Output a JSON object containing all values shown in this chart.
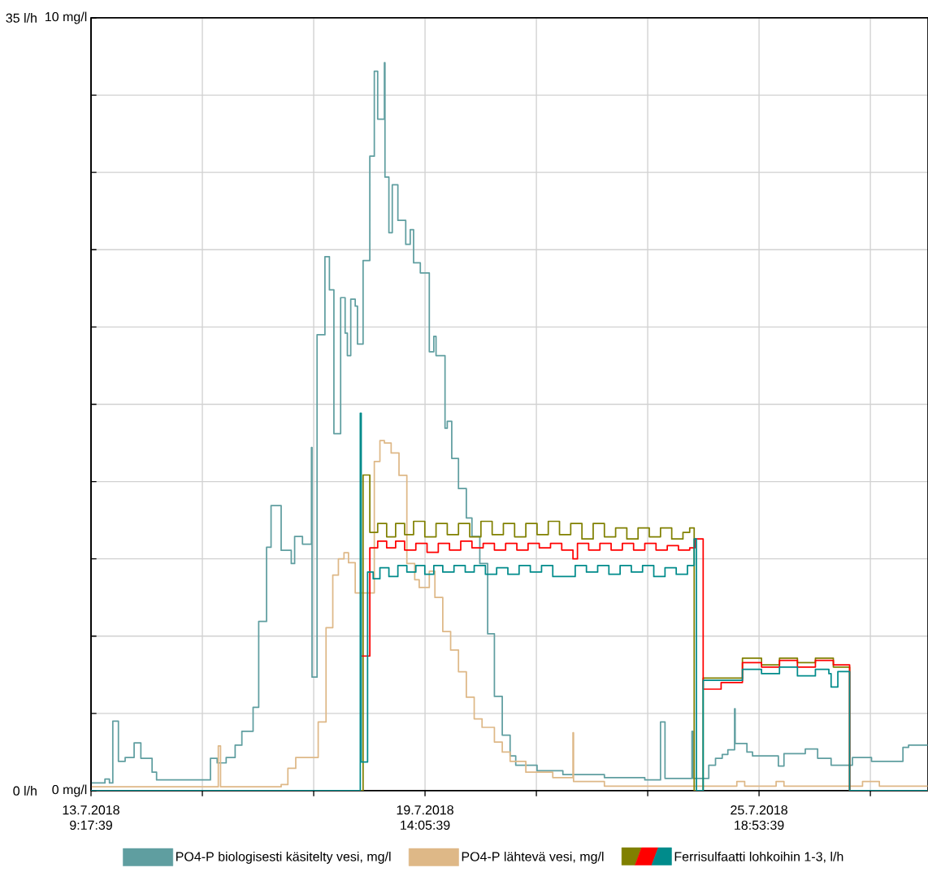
{
  "chart_data": {
    "type": "step",
    "xlim": [
      "2018-07-13T09:17:39",
      "2018-07-28T22:10"
    ],
    "xticks": [
      {
        "value": "2018-07-13T09:17:39",
        "label": "13.7.2018 9:17:39"
      },
      {
        "value": "2018-07-15T10:53:39",
        "label": null
      },
      {
        "value": "2018-07-17T12:29:39",
        "label": null
      },
      {
        "value": "2018-07-19T14:05:39",
        "label": "19.7.2018 14:05:39"
      },
      {
        "value": "2018-07-21T15:41:39",
        "label": null
      },
      {
        "value": "2018-07-23T17:17:39",
        "label": null
      },
      {
        "value": "2018-07-25T18:53:39",
        "label": "25.7.2018 18:53:39"
      },
      {
        "value": "2018-07-27T20:29:39",
        "label": null
      }
    ],
    "ylim": [
      0,
      10
    ],
    "yticks": [
      {
        "value": 0,
        "label": "0 mg/l"
      },
      {
        "value": 1,
        "label": null
      },
      {
        "value": 2,
        "label": null
      },
      {
        "value": 3,
        "label": null
      },
      {
        "value": 4,
        "label": null
      },
      {
        "value": 5,
        "label": null
      },
      {
        "value": 6,
        "label": null
      },
      {
        "value": 7,
        "label": null
      },
      {
        "value": 8,
        "label": null
      },
      {
        "value": 9,
        "label": null
      },
      {
        "value": 10,
        "label": "10 mg/l"
      }
    ],
    "y2lim": [
      0,
      35
    ],
    "y2ticks": [
      {
        "value": 0,
        "label": "0 l/h"
      },
      {
        "value": 35,
        "label": "35 l/h"
      }
    ],
    "grid": true,
    "legend": "bottom",
    "series": [
      {
        "name": "PO4-P biologisesti käsitelty vesi, mg/l",
        "color": "#5f9ea0",
        "x": [
          "2018-07-13T09:18",
          "2018-07-13T15:30",
          "2018-07-13T17:30",
          "2018-07-13T19:00",
          "2018-07-13T21:30",
          "2018-07-14T00:30",
          "2018-07-14T04:30",
          "2018-07-14T07:30",
          "2018-07-14T12:30",
          "2018-07-14T14:30",
          "2018-07-15T14:30",
          "2018-07-15T17:30",
          "2018-07-15T21:30",
          "2018-07-16T01:30",
          "2018-07-16T04:30",
          "2018-07-16T09:30",
          "2018-07-16T12:00",
          "2018-07-16T15:30",
          "2018-07-16T17:30",
          "2018-07-16T22:00",
          "2018-07-17T02:30",
          "2018-07-17T04:00",
          "2018-07-17T07:30",
          "2018-07-17T11:30",
          "2018-07-17T11:45",
          "2018-07-17T14:00",
          "2018-07-17T17:30",
          "2018-07-17T19:30",
          "2018-07-17T21:30",
          "2018-07-18T00:30",
          "2018-07-18T02:30",
          "2018-07-18T03:30",
          "2018-07-18T05:00",
          "2018-07-18T07:00",
          "2018-07-18T08:00",
          "2018-07-18T10:30",
          "2018-07-18T13:30",
          "2018-07-18T15:30",
          "2018-07-18T17:00",
          "2018-07-18T20:00",
          "2018-07-18T20:15",
          "2018-07-18T22:00",
          "2018-07-18T23:30",
          "2018-07-19T02:00",
          "2018-07-19T05:30",
          "2018-07-19T07:30",
          "2018-07-19T09:00",
          "2018-07-19T12:00",
          "2018-07-19T16:00",
          "2018-07-19T18:00",
          "2018-07-19T19:00",
          "2018-07-19T23:00",
          "2018-07-20T00:00",
          "2018-07-20T02:00",
          "2018-07-20T05:00",
          "2018-07-20T08:30",
          "2018-07-20T11:00",
          "2018-07-20T14:30",
          "2018-07-20T18:00",
          "2018-07-20T21:00",
          "2018-07-21T00:30",
          "2018-07-21T04:00",
          "2018-07-21T06:30",
          "2018-07-21T16:00",
          "2018-07-22T03:30",
          "2018-07-22T22:00",
          "2018-07-23T16:00",
          "2018-07-23T23:00",
          "2018-07-24T01:00",
          "2018-07-24T13:00",
          "2018-07-24T13:30",
          "2018-07-24T20:30",
          "2018-07-24T23:30",
          "2018-07-25T02:30",
          "2018-07-25T05:00",
          "2018-07-25T08:00",
          "2018-07-25T08:15",
          "2018-07-25T13:30",
          "2018-07-25T16:00",
          "2018-07-26T03:30",
          "2018-07-26T06:00",
          "2018-07-26T15:30",
          "2018-07-26T21:00",
          "2018-07-27T03:00",
          "2018-07-27T12:30",
          "2018-07-27T21:00",
          "2018-07-28T11:00",
          "2018-07-28T13:30",
          "2018-07-28T22:00"
        ],
        "values": [
          0.1,
          0.15,
          0.1,
          0.9,
          0.38,
          0.43,
          0.62,
          0.42,
          0.24,
          0.14,
          0.42,
          0.36,
          0.43,
          0.59,
          0.77,
          1.08,
          2.19,
          3.15,
          3.69,
          3.11,
          2.94,
          3.29,
          3.19,
          4.44,
          1.47,
          5.9,
          6.91,
          6.48,
          4.62,
          6.38,
          5.92,
          5.63,
          6.36,
          6.27,
          5.78,
          6.86,
          8.21,
          9.31,
          8.69,
          9.42,
          7.94,
          7.22,
          7.84,
          7.38,
          7.07,
          7.26,
          6.83,
          6.7,
          5.68,
          5.88,
          5.63,
          4.69,
          4.78,
          4.3,
          3.91,
          3.53,
          3.29,
          2.94,
          2.03,
          1.22,
          0.72,
          0.45,
          0.33,
          0.26,
          0.21,
          0.17,
          0.14,
          0.89,
          0.16,
          0.77,
          0.16,
          0.33,
          0.42,
          0.47,
          0.53,
          1.06,
          0.61,
          0.5,
          0.45,
          0.32,
          0.48,
          0.54,
          0.42,
          0.33,
          0.43,
          0.38,
          0.56,
          0.59,
          0.59
        ]
      },
      {
        "name": "PO4-P lähtevä vesi, mg/l",
        "color": "#deb887",
        "x": [
          "2018-07-13T09:18",
          "2018-07-15T18:00",
          "2018-07-15T19:00",
          "2018-07-16T22:00",
          "2018-07-17T01:00",
          "2018-07-17T04:30",
          "2018-07-17T14:30",
          "2018-07-17T18:00",
          "2018-07-17T21:00",
          "2018-07-17T23:30",
          "2018-07-18T02:00",
          "2018-07-18T04:00",
          "2018-07-18T07:00",
          "2018-07-18T15:30",
          "2018-07-18T18:00",
          "2018-07-18T20:00",
          "2018-07-18T23:00",
          "2018-07-19T02:30",
          "2018-07-19T06:00",
          "2018-07-19T09:30",
          "2018-07-19T11:30",
          "2018-07-19T16:00",
          "2018-07-19T18:30",
          "2018-07-19T22:00",
          "2018-07-20T01:30",
          "2018-07-20T05:00",
          "2018-07-20T08:30",
          "2018-07-20T12:00",
          "2018-07-20T15:30",
          "2018-07-20T21:00",
          "2018-07-21T00:30",
          "2018-07-21T04:00",
          "2018-07-21T11:00",
          "2018-07-21T23:00",
          "2018-07-22T08:00",
          "2018-07-22T08:15",
          "2018-07-22T22:00",
          "2018-07-25T09:00",
          "2018-07-25T12:30",
          "2018-07-26T02:30",
          "2018-07-26T06:00",
          "2018-07-27T17:00",
          "2018-07-28T00:30",
          "2018-07-28T22:00"
        ],
        "values": [
          0.05,
          0.58,
          0.05,
          0.08,
          0.29,
          0.43,
          0.89,
          2.11,
          2.79,
          3.0,
          3.08,
          2.95,
          2.56,
          4.26,
          4.53,
          4.5,
          4.37,
          4.08,
          2.94,
          2.73,
          2.63,
          2.84,
          2.5,
          2.06,
          1.82,
          1.54,
          1.21,
          0.93,
          0.82,
          0.63,
          0.5,
          0.38,
          0.24,
          0.17,
          0.75,
          0.12,
          0.06,
          0.12,
          0.06,
          0.12,
          0.06,
          0.12,
          0.06,
          0.06
        ]
      },
      {
        "color": "#808000",
        "axis": "y2",
        "x": [
          "2018-07-13T09:18",
          "2018-07-18T10:30",
          "2018-07-18T13:30",
          "2018-07-18T17:00",
          "2018-07-18T21:00",
          "2018-07-19T01:00",
          "2018-07-19T05:00",
          "2018-07-19T09:00",
          "2018-07-19T14:00",
          "2018-07-19T19:00",
          "2018-07-20T00:00",
          "2018-07-20T05:00",
          "2018-07-20T10:00",
          "2018-07-20T15:00",
          "2018-07-20T20:00",
          "2018-07-21T01:00",
          "2018-07-21T06:00",
          "2018-07-21T11:00",
          "2018-07-21T16:00",
          "2018-07-21T21:00",
          "2018-07-22T02:00",
          "2018-07-22T07:00",
          "2018-07-22T12:00",
          "2018-07-22T17:00",
          "2018-07-22T22:00",
          "2018-07-23T03:00",
          "2018-07-23T08:00",
          "2018-07-23T13:00",
          "2018-07-23T18:00",
          "2018-07-23T23:00",
          "2018-07-24T04:00",
          "2018-07-24T09:00",
          "2018-07-24T12:00",
          "2018-07-24T14:00",
          "2018-07-24T18:00",
          "2018-07-25T11:30",
          "2018-07-25T20:00",
          "2018-07-26T04:00",
          "2018-07-26T12:00",
          "2018-07-26T20:00",
          "2018-07-27T04:00",
          "2018-07-27T11:15",
          "2018-07-28T22:00"
        ],
        "values": [
          0,
          14.3,
          11.7,
          12.1,
          11.5,
          12.1,
          11.6,
          12.2,
          11.5,
          12.1,
          11.6,
          12.1,
          11.5,
          12.2,
          11.6,
          12.1,
          11.5,
          12.1,
          11.6,
          12.2,
          11.6,
          12.1,
          11.4,
          12.1,
          11.5,
          11.9,
          11.4,
          11.9,
          11.5,
          11.9,
          11.4,
          11.7,
          11.9,
          0,
          5.1,
          6.0,
          5.7,
          6.0,
          5.8,
          6.0,
          5.6,
          0,
          0
        ]
      },
      {
        "color": "#ff0000",
        "axis": "y2",
        "x": [
          "2018-07-18T09:40",
          "2018-07-18T13:30",
          "2018-07-18T17:00",
          "2018-07-18T21:00",
          "2018-07-19T01:00",
          "2018-07-19T05:00",
          "2018-07-19T10:00",
          "2018-07-19T15:00",
          "2018-07-19T20:00",
          "2018-07-20T01:00",
          "2018-07-20T06:00",
          "2018-07-20T11:00",
          "2018-07-20T16:00",
          "2018-07-20T21:00",
          "2018-07-21T02:00",
          "2018-07-21T07:00",
          "2018-07-21T12:00",
          "2018-07-21T17:00",
          "2018-07-21T22:00",
          "2018-07-22T03:00",
          "2018-07-22T08:00",
          "2018-07-22T10:00",
          "2018-07-22T15:00",
          "2018-07-22T20:00",
          "2018-07-23T01:00",
          "2018-07-23T06:00",
          "2018-07-23T11:00",
          "2018-07-23T16:00",
          "2018-07-23T21:00",
          "2018-07-24T02:00",
          "2018-07-24T07:00",
          "2018-07-24T12:00",
          "2018-07-24T14:20",
          "2018-07-24T18:00",
          "2018-07-25T02:00",
          "2018-07-25T11:30",
          "2018-07-25T20:00",
          "2018-07-26T04:00",
          "2018-07-26T12:00",
          "2018-07-26T20:00",
          "2018-07-27T04:00",
          "2018-07-27T11:15",
          "2018-07-28T22:00"
        ],
        "values": [
          6.1,
          11.0,
          11.3,
          11.0,
          11.3,
          10.9,
          11.2,
          10.8,
          11.2,
          10.9,
          11.3,
          11.0,
          11.2,
          10.9,
          11.2,
          10.9,
          11.2,
          11.0,
          11.2,
          10.9,
          10.5,
          11.2,
          10.9,
          11.2,
          10.9,
          11.2,
          10.9,
          11.2,
          10.9,
          11.1,
          10.9,
          11.0,
          11.4,
          4.6,
          4.9,
          5.8,
          5.6,
          5.9,
          5.6,
          5.9,
          5.7,
          0,
          0
        ]
      },
      {
        "name": "Ferrisulfaatti lohkoihin 1-3, l/h",
        "color": "#008b8b",
        "axis": "y2",
        "x": [
          "2018-07-13T09:18",
          "2018-07-18T09:15",
          "2018-07-18T09:40",
          "2018-07-18T12:30",
          "2018-07-18T15:00",
          "2018-07-18T18:00",
          "2018-07-18T22:00",
          "2018-07-19T02:00",
          "2018-07-19T06:00",
          "2018-07-19T10:00",
          "2018-07-19T14:00",
          "2018-07-19T18:00",
          "2018-07-19T22:00",
          "2018-07-20T03:00",
          "2018-07-20T08:00",
          "2018-07-20T12:00",
          "2018-07-20T17:00",
          "2018-07-20T22:00",
          "2018-07-21T03:00",
          "2018-07-21T08:00",
          "2018-07-21T13:00",
          "2018-07-21T18:00",
          "2018-07-21T23:00",
          "2018-07-22T09:00",
          "2018-07-22T14:00",
          "2018-07-22T19:00",
          "2018-07-23T00:00",
          "2018-07-23T05:00",
          "2018-07-23T10:00",
          "2018-07-23T15:00",
          "2018-07-23T20:00",
          "2018-07-24T01:00",
          "2018-07-24T06:00",
          "2018-07-24T11:00",
          "2018-07-24T14:00",
          "2018-07-24T15:00",
          "2018-07-24T18:00",
          "2018-07-25T11:30",
          "2018-07-25T20:00",
          "2018-07-26T04:00",
          "2018-07-26T12:00",
          "2018-07-26T20:00",
          "2018-07-27T02:00",
          "2018-07-27T03:00",
          "2018-07-27T06:00",
          "2018-07-27T11:15",
          "2018-07-28T22:00"
        ],
        "values": [
          0,
          17.1,
          1.3,
          9.9,
          9.6,
          10.1,
          9.7,
          10.2,
          9.9,
          10.2,
          9.8,
          10.2,
          9.9,
          10.2,
          9.9,
          10.2,
          9.8,
          10.1,
          9.8,
          10.2,
          9.9,
          10.2,
          9.7,
          10.2,
          9.9,
          10.2,
          9.8,
          10.2,
          9.9,
          10.2,
          9.7,
          10.1,
          9.8,
          10.2,
          11.4,
          0,
          5.0,
          5.5,
          5.3,
          5.6,
          5.2,
          5.5,
          5.3,
          4.7,
          5.4,
          0,
          0
        ]
      }
    ]
  }
}
